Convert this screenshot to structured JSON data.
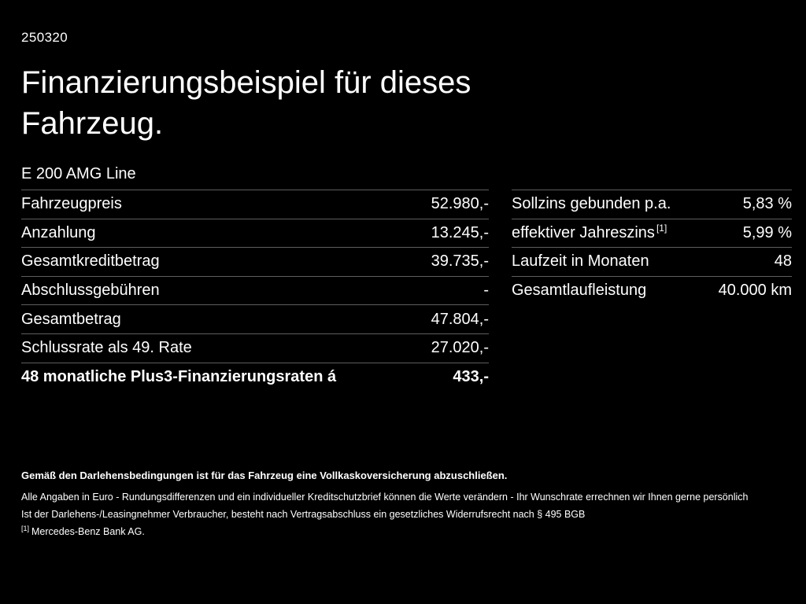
{
  "code": "250320",
  "title": "Finanzierungsbeispiel für dieses\nFahrzeug.",
  "model": "E 200 AMG Line",
  "finance_table": {
    "rows": [
      {
        "label": "Fahrzeugpreis",
        "value": "52.980,-"
      },
      {
        "label": "Anzahlung",
        "value": "13.245,-"
      },
      {
        "label": "Gesamtkreditbetrag",
        "value": "39.735,-"
      },
      {
        "label": "Abschlussgebühren",
        "value": "-"
      },
      {
        "label": "Gesamtbetrag",
        "value": "47.804,-"
      },
      {
        "label": "Schlussrate als 49. Rate",
        "value": "27.020,-"
      },
      {
        "label": "48 monatliche Plus3-Finanzierungsraten á",
        "value": "433,-"
      }
    ]
  },
  "conditions_table": {
    "rows": [
      {
        "label": "Sollzins gebunden p.a.",
        "value": "5,83 %"
      },
      {
        "label": "effektiver Jahreszins",
        "sup": "[1]",
        "value": "5,99 %"
      },
      {
        "label": "Laufzeit in Monaten",
        "value": "48"
      },
      {
        "label": "Gesamtlaufleistung",
        "value": "40.000 km"
      }
    ]
  },
  "footer": {
    "line1": "Gemäß den Darlehensbedingungen ist für das Fahrzeug eine Vollkaskoversicherung abzuschließen.",
    "line2": "Alle Angaben in Euro - Rundungsdifferenzen und ein individueller Kreditschutzbrief können die Werte verändern - Ihr Wunschrate errechnen wir Ihnen gerne persönlich",
    "line3": "Ist der Darlehens-/Leasingnehmer Verbraucher, besteht nach Vertragsabschluss ein gesetzliches Widerrufsrecht nach § 495 BGB",
    "line4_sup": "[1]",
    "line4": "Mercedes-Benz Bank AG."
  },
  "colors": {
    "background": "#000000",
    "text": "#ffffff",
    "divider": "#5e5e5e"
  }
}
